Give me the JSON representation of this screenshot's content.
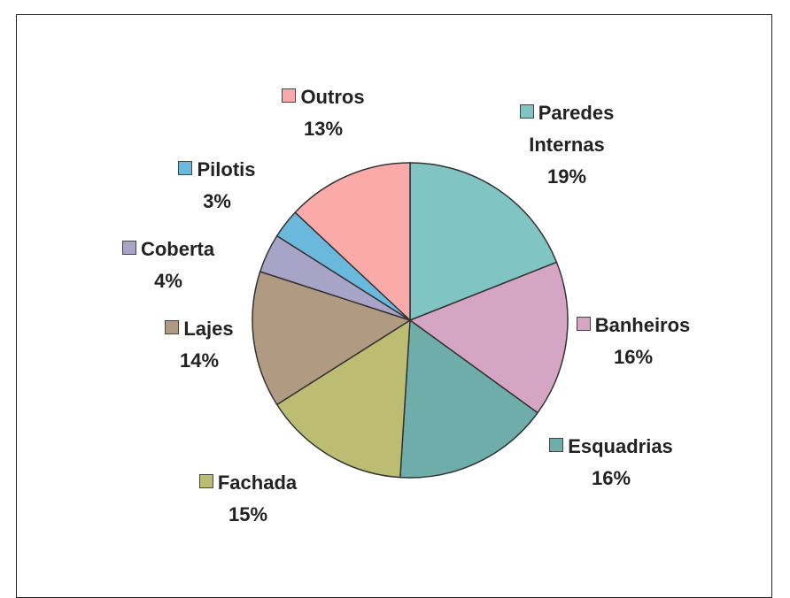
{
  "chart_data": {
    "type": "pie",
    "categories": [
      "Paredes Internas",
      "Banheiros",
      "Esquadrias",
      "Fachada",
      "Lajes",
      "Coberta",
      "Pilotis",
      "Outros"
    ],
    "values": [
      19,
      16,
      16,
      15,
      14,
      4,
      3,
      13
    ],
    "value_labels": [
      "19%",
      "16%",
      "16%",
      "15%",
      "14%",
      "4%",
      "3%",
      "13%"
    ],
    "colors": [
      "#80c4c4",
      "#d4a6c4",
      "#6fadaa",
      "#bcbc72",
      "#b09a82",
      "#a8a4c8",
      "#6ab8dc",
      "#fbaaaa"
    ]
  }
}
